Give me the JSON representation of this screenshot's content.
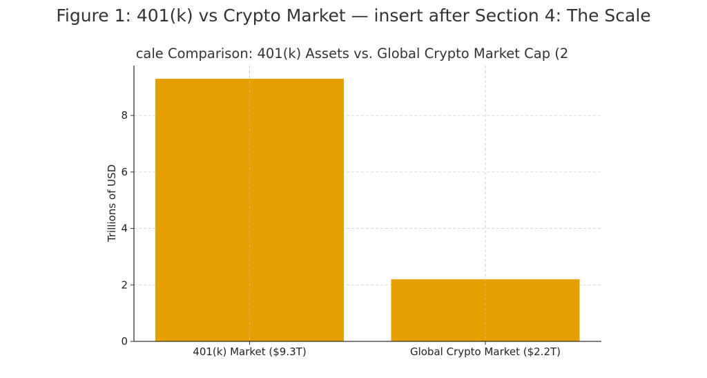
{
  "figure_title": "Figure 1: 401(k) vs Crypto Market — insert after Section 4: The Scale",
  "chart_data": {
    "type": "bar",
    "title": "cale Comparison: 401(k) Assets vs. Global Crypto Market Cap (2",
    "categories": [
      "401(k) Market ($9.3T)",
      "Global Crypto Market ($2.2T)"
    ],
    "values": [
      9.3,
      2.2
    ],
    "xlabel": "",
    "ylabel": "Trillions of USD",
    "ylim": [
      0,
      9.765
    ],
    "yticks": [
      "0",
      "2",
      "4",
      "6",
      "8"
    ],
    "grid": true,
    "bar_color": "#E69F00"
  }
}
